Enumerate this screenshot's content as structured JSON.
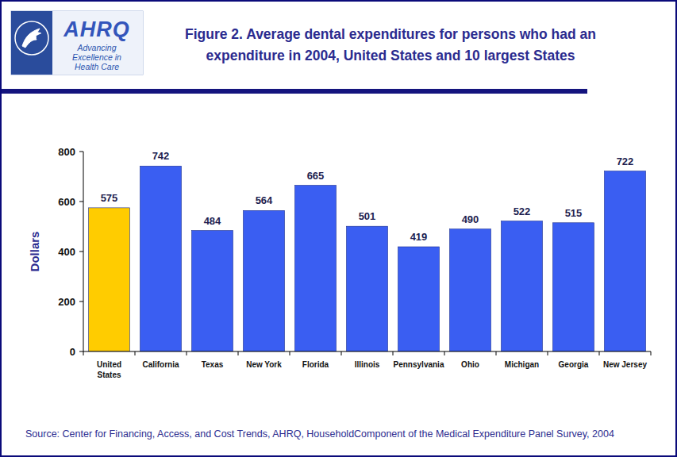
{
  "chart_data": {
    "type": "bar",
    "title": "Figure 2. Average dental expenditures for persons who had an expenditure in 2004, United States and 10 largest States",
    "ylabel": "Dollars",
    "source": "Source: Center for Financing, Access, and Cost Trends, AHRQ, HouseholdComponent of the Medical Expenditure Panel Survey, 2004",
    "logo_name": "AHRQ",
    "logo_tagline": "Advancing Excellence in Health Care",
    "categories": [
      "United States",
      "California",
      "Texas",
      "New York",
      "Florida",
      "Illinois",
      "Pennsylvania",
      "Ohio",
      "Michigan",
      "Georgia",
      "New Jersey"
    ],
    "values": [
      575,
      742,
      484,
      564,
      665,
      501,
      419,
      490,
      522,
      515,
      722
    ],
    "colors": [
      "#ffcc00",
      "#3a5ef2",
      "#3a5ef2",
      "#3a5ef2",
      "#3a5ef2",
      "#3a5ef2",
      "#3a5ef2",
      "#3a5ef2",
      "#3a5ef2",
      "#3a5ef2",
      "#3a5ef2"
    ],
    "ylim": [
      0,
      800
    ],
    "yticks": [
      0,
      200,
      400,
      600,
      800
    ],
    "grid": false,
    "data_labels": true
  }
}
